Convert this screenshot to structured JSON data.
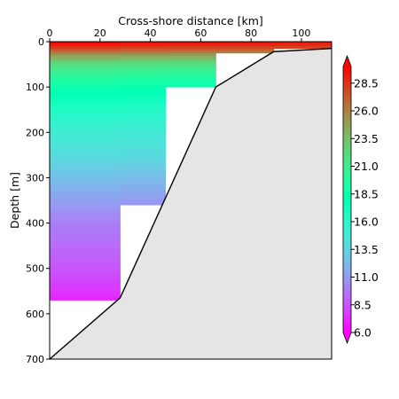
{
  "chart_data": {
    "type": "heatmap",
    "title": "",
    "xlabel": "Cross-shore distance [km]",
    "ylabel": "Depth [m]",
    "xlim": [
      0,
      112
    ],
    "ylim": [
      700,
      0
    ],
    "x_ticks": [
      0,
      20,
      40,
      60,
      80,
      100
    ],
    "y_ticks": [
      0,
      100,
      200,
      300,
      400,
      500,
      600,
      700
    ],
    "x_axis_position": "top",
    "grid": false,
    "colormap": "rainbow",
    "colorbar": {
      "vmin": 6.0,
      "vmax": 30.0,
      "ticks": [
        6.0,
        8.5,
        11.0,
        13.5,
        16.0,
        18.5,
        21.0,
        23.5,
        26.0,
        28.5
      ],
      "tick_labels": [
        "6.0",
        "8.5",
        "11.0",
        "13.5",
        "16.0",
        "18.5",
        "21.0",
        "23.5",
        "26.0",
        "28.5"
      ]
    },
    "data_columns": [
      {
        "x0": 0,
        "x1": 28,
        "max_depth": 570
      },
      {
        "x0": 28,
        "x1": 46,
        "max_depth": 360
      },
      {
        "x0": 46,
        "x1": 66,
        "max_depth": 100
      },
      {
        "x0": 66,
        "x1": 89,
        "max_depth": 25
      },
      {
        "x0": 89,
        "x1": 112,
        "max_depth": 15
      }
    ],
    "temperature_profile": [
      {
        "depth": 0,
        "temp": 30.0
      },
      {
        "depth": 5,
        "temp": 29.6
      },
      {
        "depth": 15,
        "temp": 28.0
      },
      {
        "depth": 30,
        "temp": 25.0
      },
      {
        "depth": 50,
        "temp": 22.0
      },
      {
        "depth": 75,
        "temp": 20.0
      },
      {
        "depth": 100,
        "temp": 18.6
      },
      {
        "depth": 150,
        "temp": 16.5
      },
      {
        "depth": 200,
        "temp": 15.0
      },
      {
        "depth": 250,
        "temp": 14.0
      },
      {
        "depth": 300,
        "temp": 12.5
      },
      {
        "depth": 350,
        "temp": 11.2
      },
      {
        "depth": 400,
        "temp": 10.0
      },
      {
        "depth": 450,
        "temp": 9.3
      },
      {
        "depth": 500,
        "temp": 8.6
      },
      {
        "depth": 550,
        "temp": 7.6
      },
      {
        "depth": 570,
        "temp": 7.0
      }
    ],
    "bathymetry": [
      {
        "x": 0,
        "depth": 700
      },
      {
        "x": 28,
        "depth": 565
      },
      {
        "x": 66,
        "depth": 100
      },
      {
        "x": 89,
        "depth": 22
      },
      {
        "x": 112,
        "depth": 15
      }
    ],
    "land_color": "#e5e5e5"
  }
}
